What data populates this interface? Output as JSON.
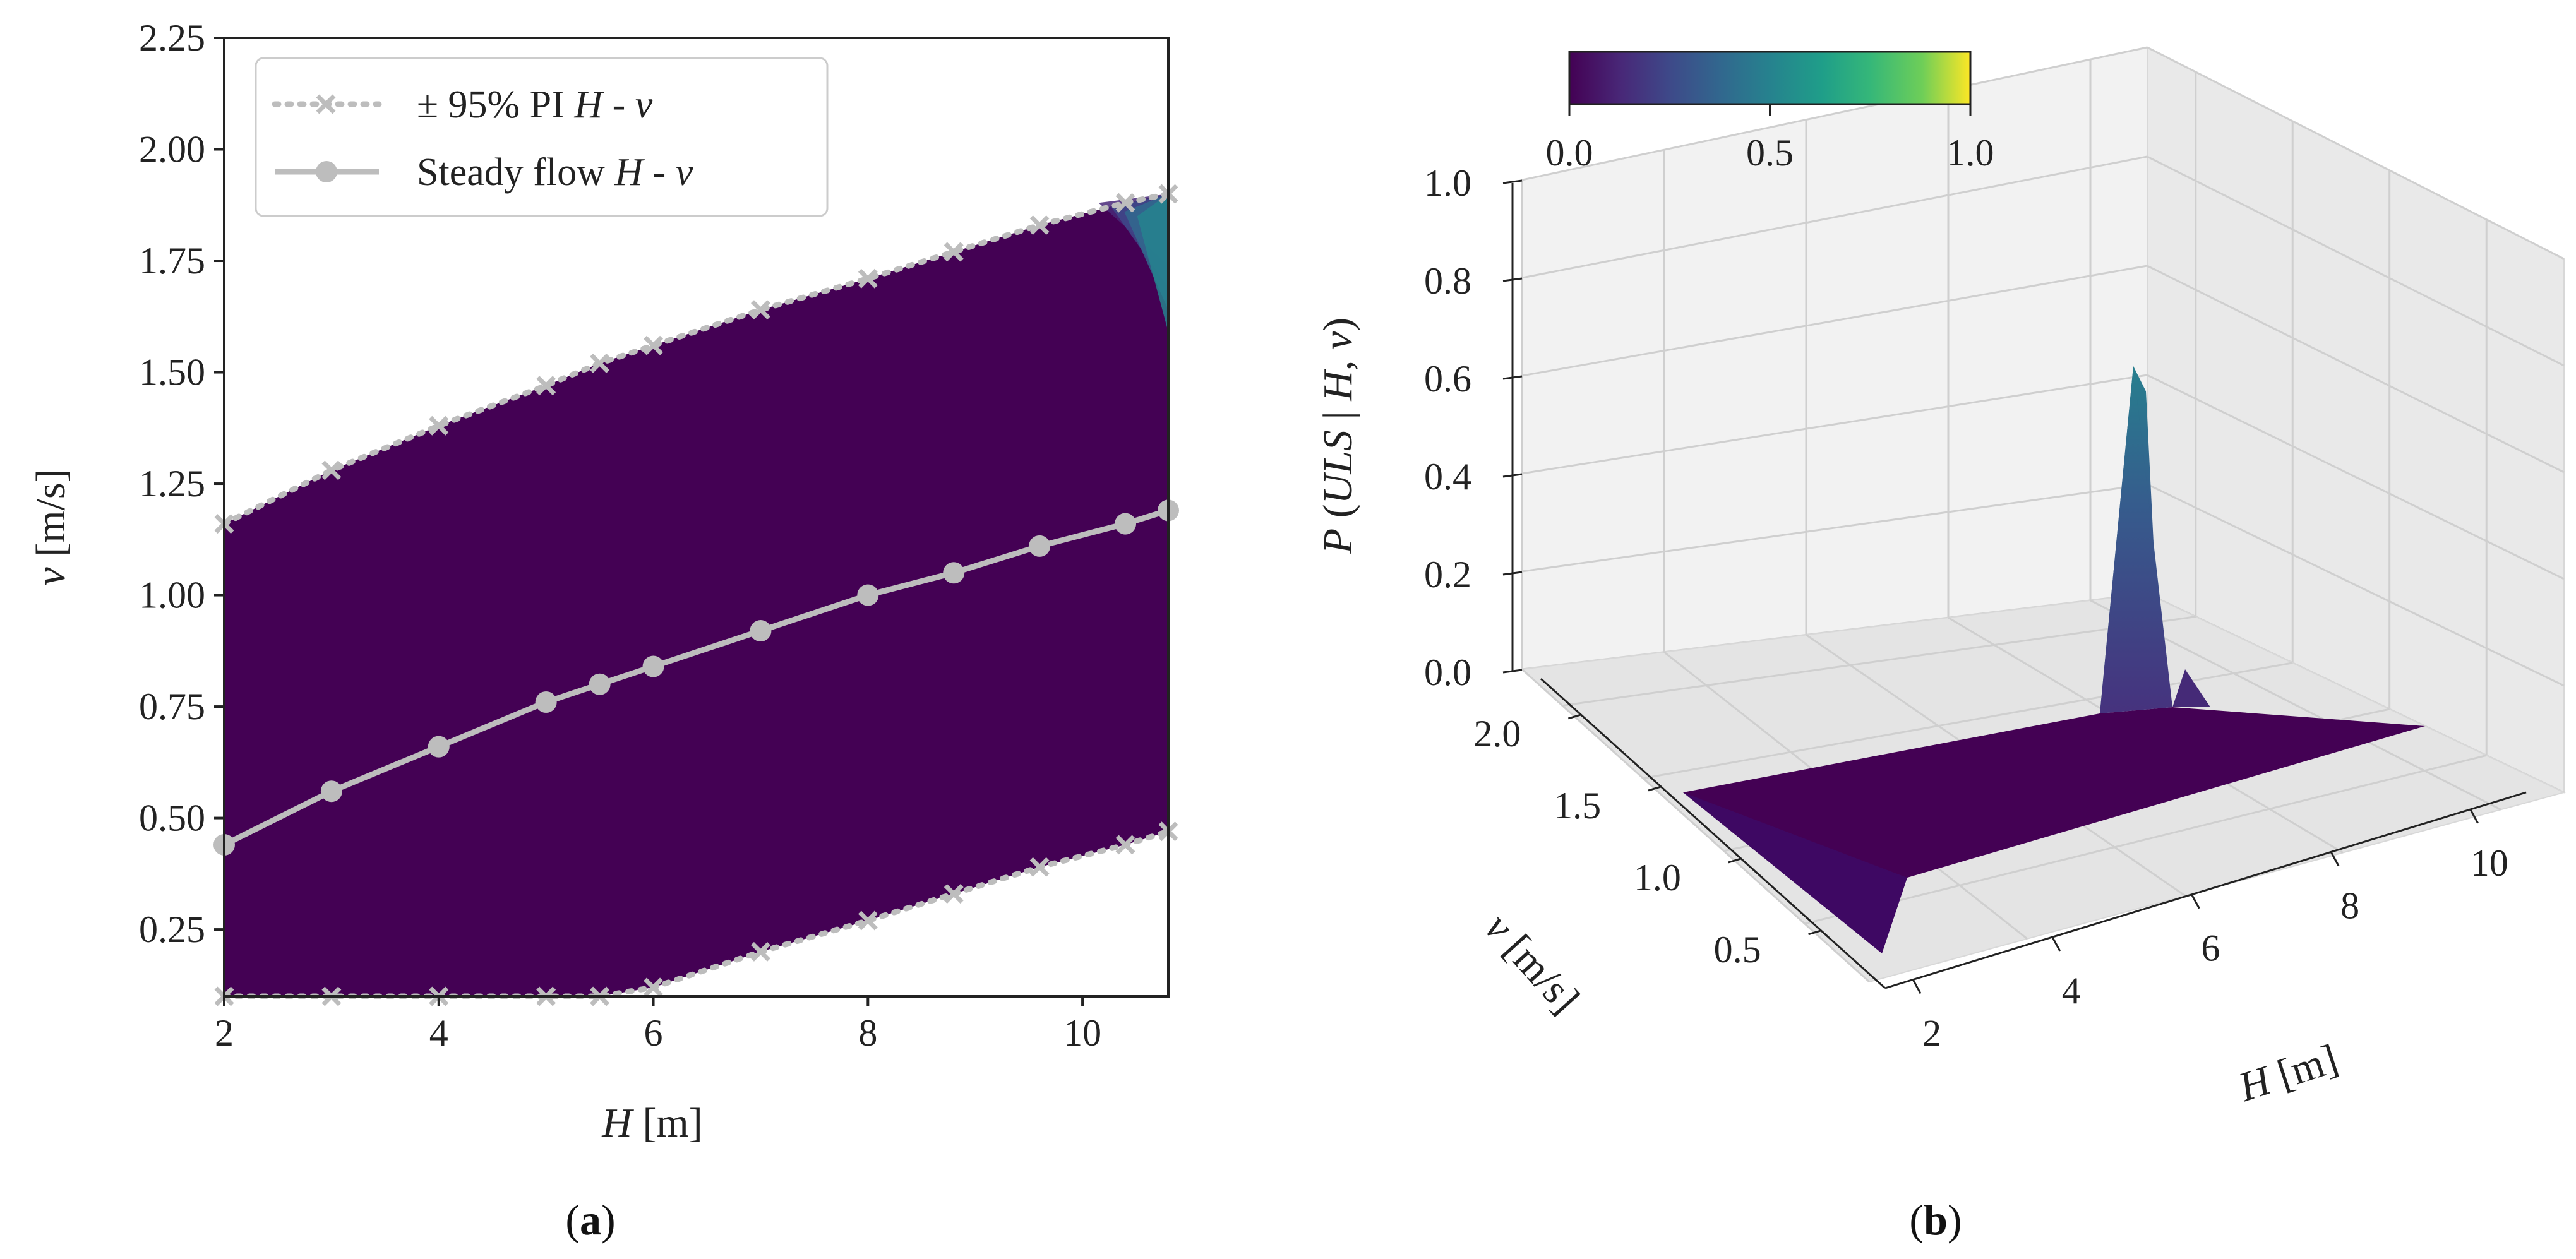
{
  "chart_data": [
    {
      "type": "area",
      "panel_label": "a",
      "xlabel_sym": "H",
      "xlabel_unit": " [m]",
      "ylabel_sym": "v",
      "ylabel_unit": " [m/s]",
      "xlim": [
        2,
        10.8
      ],
      "ylim": [
        0.1,
        2.25
      ],
      "xticks": [
        2,
        4,
        6,
        8,
        10
      ],
      "yticks": [
        0.25,
        0.5,
        0.75,
        1.0,
        1.25,
        1.5,
        1.75,
        2.0,
        2.25
      ],
      "legend_position": "top-left",
      "fill_color": "#440154",
      "line_color": "#bdbdbd",
      "series": [
        {
          "name_prefix": "± 95% PI ",
          "name_sym": "H - v",
          "role": "upper",
          "style": "dotted-x",
          "x": [
            2,
            3,
            4,
            5,
            5.5,
            6,
            7,
            8,
            8.8,
            9.6,
            10.4,
            10.8
          ],
          "y": [
            1.16,
            1.28,
            1.38,
            1.47,
            1.52,
            1.56,
            1.64,
            1.71,
            1.77,
            1.83,
            1.88,
            1.9
          ]
        },
        {
          "role": "lower",
          "style": "dotted-x",
          "x": [
            2,
            3,
            4,
            5,
            5.5,
            6,
            7,
            8,
            8.8,
            9.6,
            10.4,
            10.8
          ],
          "y": [
            0.1,
            0.1,
            0.1,
            0.1,
            0.1,
            0.12,
            0.2,
            0.27,
            0.33,
            0.39,
            0.44,
            0.47
          ]
        },
        {
          "name_prefix": "Steady flow ",
          "name_sym": "H - v",
          "role": "mean",
          "style": "solid-dot",
          "x": [
            2,
            3,
            4,
            5,
            5.5,
            6,
            7,
            8,
            8.8,
            9.6,
            10.4,
            10.8
          ],
          "y": [
            0.44,
            0.56,
            0.66,
            0.76,
            0.8,
            0.84,
            0.92,
            1.0,
            1.05,
            1.11,
            1.16,
            1.19
          ]
        }
      ]
    },
    {
      "type": "surface",
      "panel_label": "b",
      "zlabel_prefix": "P",
      "zlabel_text": "(ULS | H, v)",
      "xlabel_sym": "H",
      "xlabel_unit": " [m]",
      "ylabel_sym": "v",
      "ylabel_unit": " [m/s]",
      "xticks": [
        2,
        4,
        6,
        8,
        10
      ],
      "yticks": [
        0.5,
        1.0,
        1.5,
        2.0
      ],
      "zticks": [
        0.0,
        0.2,
        0.4,
        0.6,
        0.8,
        1.0
      ],
      "zlim": [
        0,
        1
      ],
      "surface_base_color": "#440154",
      "peak": {
        "H": 10.8,
        "v": 1.9,
        "P": 0.8
      },
      "colorbar": {
        "ticks": [
          "0.0",
          "0.5",
          "1.0"
        ],
        "range": [
          0,
          1
        ],
        "colormap": "viridis",
        "position": "top"
      }
    }
  ]
}
